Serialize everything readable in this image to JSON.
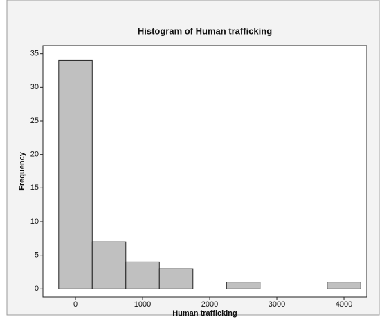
{
  "chart_data": {
    "type": "histogram",
    "title": "Histogram of Human trafficking",
    "x_label": "Human trafficking",
    "y_label": "Frequency",
    "bins": [
      -250,
      250,
      750,
      1250,
      1750,
      2250,
      2750,
      3250,
      3750,
      4250
    ],
    "counts": [
      34,
      7,
      4,
      3,
      0,
      1,
      0,
      0,
      1
    ],
    "color": "#c0c0c0",
    "xlim": [
      -485,
      4340
    ],
    "xticks": [
      0,
      1000,
      2000,
      3000,
      4000
    ],
    "ylim": [
      -1.2,
      36.2
    ],
    "yticks": [
      0,
      5,
      10,
      15,
      20,
      25,
      30,
      35
    ]
  }
}
